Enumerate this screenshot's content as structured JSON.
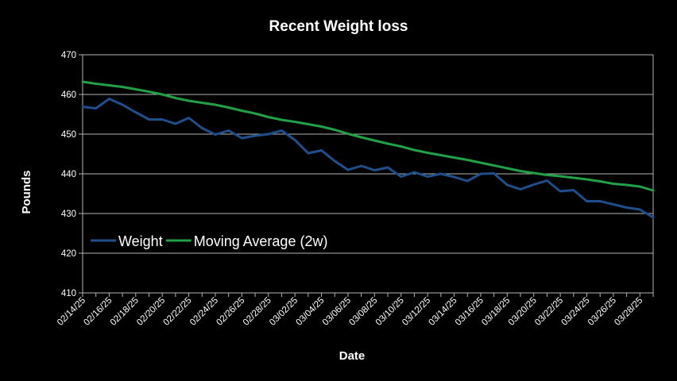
{
  "chart_data": {
    "type": "line",
    "title": "Recent Weight loss",
    "xlabel": "Date",
    "ylabel": "Pounds",
    "ylim": [
      410,
      470
    ],
    "yticks": [
      410,
      420,
      430,
      440,
      450,
      460,
      470
    ],
    "grid": true,
    "legend_position": "lower-left",
    "x": [
      "02/14/25",
      "02/15/25",
      "02/16/25",
      "02/17/25",
      "02/18/25",
      "02/19/25",
      "02/20/25",
      "02/21/25",
      "02/22/25",
      "02/23/25",
      "02/24/25",
      "02/25/25",
      "02/26/25",
      "02/27/25",
      "02/28/25",
      "03/01/25",
      "03/02/25",
      "03/03/25",
      "03/04/25",
      "03/05/25",
      "03/06/25",
      "03/07/25",
      "03/08/25",
      "03/09/25",
      "03/10/25",
      "03/11/25",
      "03/12/25",
      "03/13/25",
      "03/14/25",
      "03/15/25",
      "03/16/25",
      "03/17/25",
      "03/18/25",
      "03/19/25",
      "03/20/25",
      "03/21/25",
      "03/22/25",
      "03/23/25",
      "03/24/25",
      "03/25/25",
      "03/26/25",
      "03/27/25",
      "03/28/25",
      "03/29/25"
    ],
    "x_tick_labels": [
      "02/14/25",
      "02/16/25",
      "02/18/25",
      "02/20/25",
      "02/22/25",
      "02/24/25",
      "02/26/25",
      "02/28/25",
      "03/02/25",
      "03/04/25",
      "03/06/25",
      "03/08/25",
      "03/10/25",
      "03/12/25",
      "03/14/25",
      "03/16/25",
      "03/18/25",
      "03/20/25",
      "03/22/25",
      "03/24/25",
      "03/26/25",
      "03/28/25"
    ],
    "series": [
      {
        "name": "Weight",
        "color": "#1f4e8c",
        "values": [
          456.9,
          456.5,
          458.9,
          457.4,
          455.5,
          453.7,
          453.7,
          452.6,
          454.1,
          451.5,
          449.9,
          450.9,
          449.0,
          449.6,
          450.0,
          450.9,
          448.5,
          445.2,
          445.9,
          443.2,
          441.0,
          442.0,
          440.9,
          441.6,
          439.3,
          440.4,
          439.3,
          440.0,
          439.2,
          438.2,
          440.0,
          440.1,
          437.2,
          436.1,
          437.3,
          438.3,
          435.6,
          435.9,
          433.1,
          433.1,
          432.3,
          431.5,
          431.0,
          429.0
        ]
      },
      {
        "name": "Moving Average (2w)",
        "color": "#22a046",
        "values": [
          463.2,
          462.7,
          462.3,
          461.9,
          461.3,
          460.7,
          460.0,
          459.1,
          458.4,
          457.9,
          457.4,
          456.7,
          455.9,
          455.2,
          454.3,
          453.6,
          453.1,
          452.5,
          451.9,
          451.1,
          450.1,
          449.2,
          448.4,
          447.6,
          446.9,
          446.0,
          445.3,
          444.7,
          444.1,
          443.5,
          442.8,
          442.1,
          441.4,
          440.7,
          440.2,
          439.7,
          439.4,
          439.0,
          438.6,
          438.1,
          437.5,
          437.2,
          436.8,
          435.8
        ]
      }
    ]
  }
}
